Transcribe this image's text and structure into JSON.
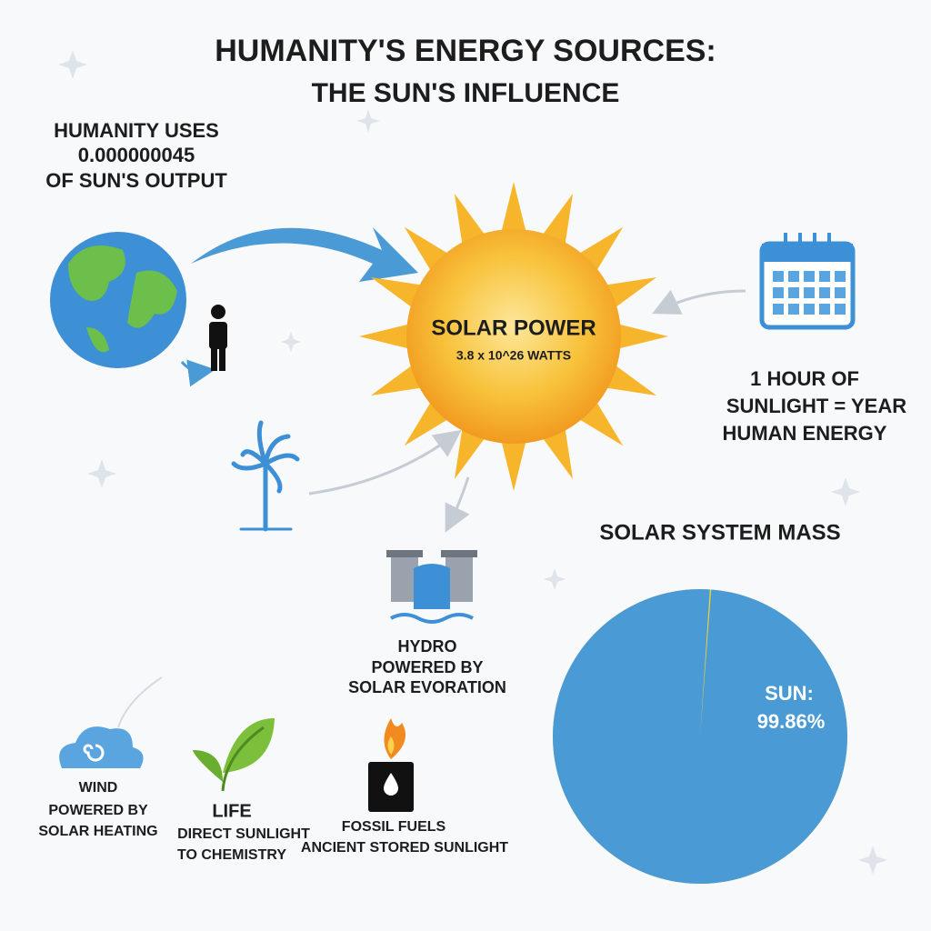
{
  "title": "HUMANITY'S ENERGY SOURCES:",
  "subtitle": "THE SUN'S INFLUENCE",
  "usage": {
    "lines": [
      "HUMANITY USES",
      "0.000000045",
      "OF SUN'S OUTPUT"
    ]
  },
  "sun": {
    "label": "SOLAR POWER",
    "output": "3.8 x 10^26 WATTS"
  },
  "calendar": {
    "lines": [
      "1 HOUR OF",
      "SUNLIGHT = YEAR",
      "HUMAN ENERGY"
    ]
  },
  "hydro": {
    "lines": [
      "HYDRO",
      "POWERED BY",
      "SOLAR EVORATION"
    ]
  },
  "wind": {
    "lines": [
      "WIND",
      "POWERED BY",
      "SOLAR HEATING"
    ]
  },
  "life": {
    "lines": [
      "LIFE",
      "DIRECT SUNLIGHT",
      "TO CHEMISTRY"
    ]
  },
  "fossil": {
    "lines": [
      "FOSSIL FUELS",
      "ANCIENT STORED SUNLIGHT"
    ]
  },
  "pie": {
    "title": "SOLAR SYSTEM MASS",
    "label": "SUN:",
    "value": 99.86,
    "value_label": "99.86%",
    "color": "#4a9ad6",
    "other_color": "#f3d23a"
  }
}
